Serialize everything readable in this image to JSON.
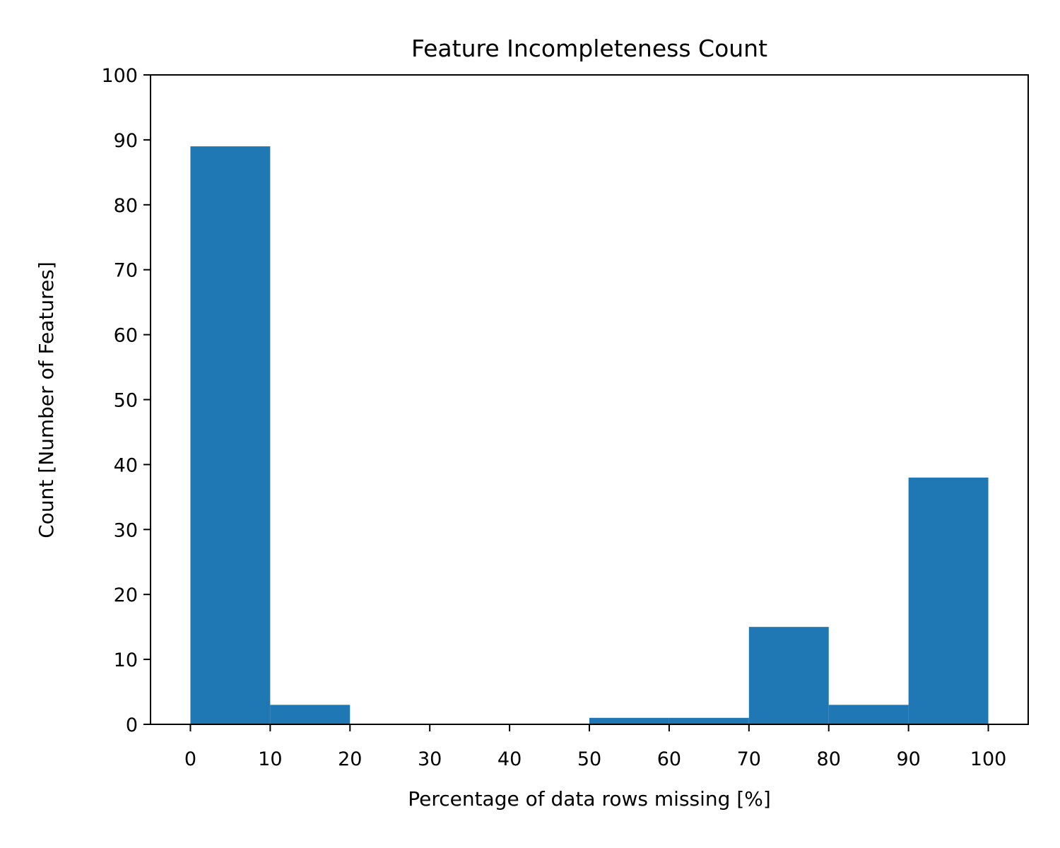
{
  "chart_data": {
    "type": "bar",
    "title": "Feature Incompleteness Count",
    "xlabel": "Percentage of data rows missing [%]",
    "ylabel": "Count [Number of Features]",
    "bins": [
      {
        "x0": 0,
        "x1": 10,
        "count": 89
      },
      {
        "x0": 10,
        "x1": 20,
        "count": 3
      },
      {
        "x0": 20,
        "x1": 30,
        "count": 0
      },
      {
        "x0": 30,
        "x1": 40,
        "count": 0
      },
      {
        "x0": 40,
        "x1": 50,
        "count": 0
      },
      {
        "x0": 50,
        "x1": 60,
        "count": 1
      },
      {
        "x0": 60,
        "x1": 70,
        "count": 1
      },
      {
        "x0": 70,
        "x1": 80,
        "count": 15
      },
      {
        "x0": 80,
        "x1": 90,
        "count": 3
      },
      {
        "x0": 90,
        "x1": 100,
        "count": 38
      }
    ],
    "xlim": [
      -5,
      105
    ],
    "ylim": [
      0,
      100
    ],
    "xticks": [
      "0",
      "10",
      "20",
      "30",
      "40",
      "50",
      "60",
      "70",
      "80",
      "90",
      "100"
    ],
    "yticks": [
      "0",
      "10",
      "20",
      "30",
      "40",
      "50",
      "60",
      "70",
      "80",
      "90",
      "100"
    ],
    "bar_color": "#1f77b4",
    "grid": false,
    "legend": "none"
  }
}
